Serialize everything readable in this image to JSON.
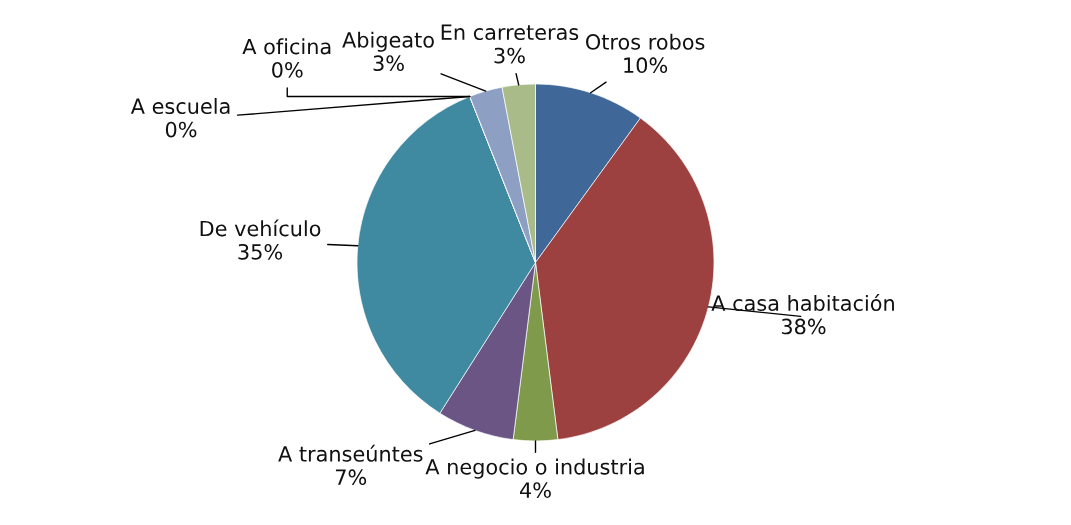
{
  "chart_data": {
    "type": "pie",
    "categories": [
      "Otros robos",
      "A casa habitación",
      "A negocio o industria",
      "A transeúntes",
      "De vehículo",
      "A escuela",
      "A oficina",
      "Abigeato",
      "En carreteras"
    ],
    "values": [
      10,
      38,
      4,
      7,
      35,
      0,
      0,
      3,
      3
    ],
    "value_labels": [
      "10%",
      "38%",
      "4%",
      "7%",
      "35%",
      "0%",
      "0%",
      "3%",
      "3%"
    ],
    "colors": [
      "#3f6899",
      "#9c4040",
      "#7f9a4a",
      "#6a5585",
      "#3f8aa0",
      "#4f81bd",
      "#c0504d",
      "#8da0c4",
      "#a8bb88"
    ]
  }
}
